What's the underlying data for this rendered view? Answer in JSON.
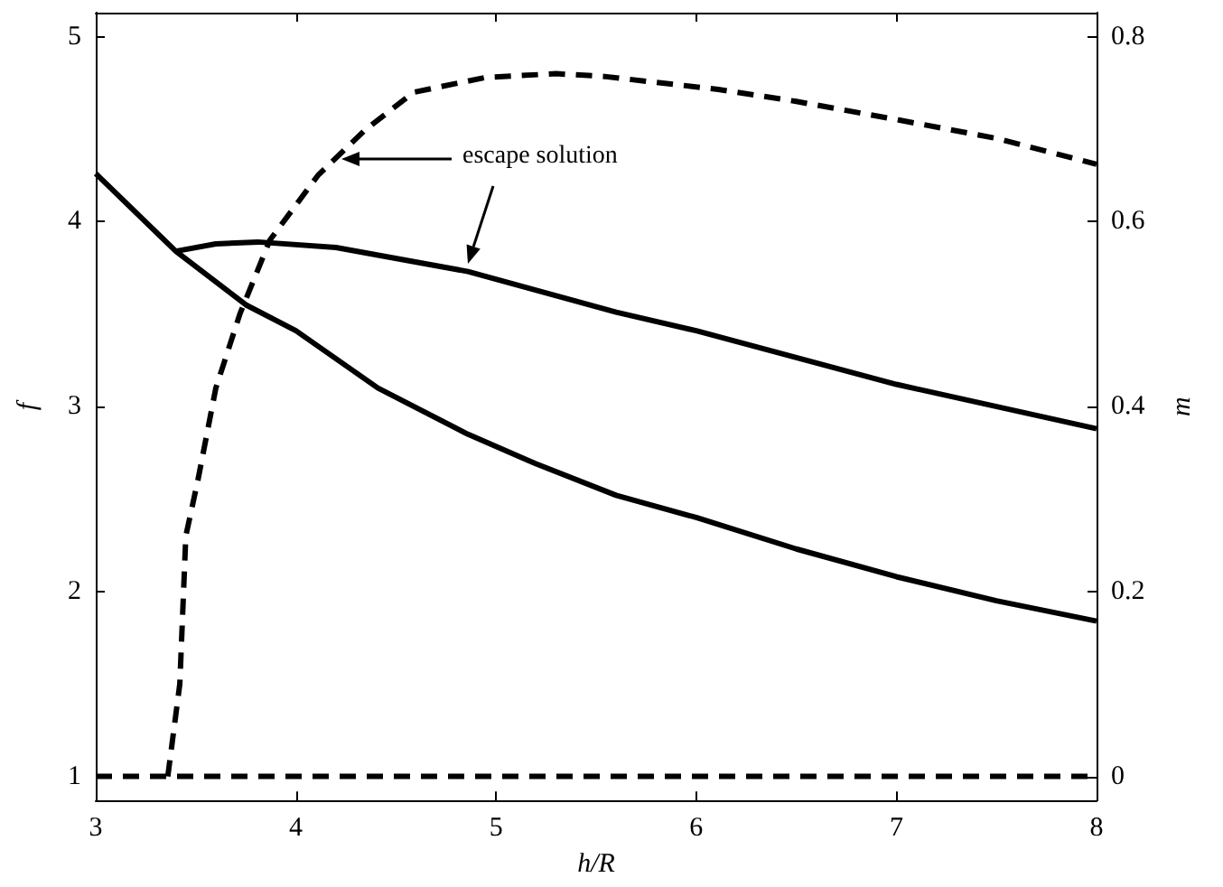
{
  "chart_data": {
    "type": "line",
    "xlabel": "h/R",
    "ylabel": "f",
    "y2label": "m",
    "xlim": [
      3,
      8
    ],
    "xticks": [
      3,
      4,
      5,
      6,
      7,
      8
    ],
    "ylim": [
      0.87,
      5.13
    ],
    "yticks": [
      1,
      2,
      3,
      4,
      5
    ],
    "y2lim": [
      -0.026,
      0.826
    ],
    "y2ticks": [
      0,
      0.2,
      0.4,
      0.6,
      0.8
    ],
    "grid": false,
    "marker": "none",
    "series": [
      {
        "color": "#000000",
        "line_style": "solid",
        "x": [
          3,
          3.4,
          3.75,
          4.0,
          4.41,
          4.86,
          5.2,
          5.6,
          6,
          6.5,
          7,
          7.5,
          8
        ],
        "values": [
          4.26,
          3.84,
          3.55,
          3.41,
          3.1,
          2.85,
          2.69,
          2.52,
          2.4,
          2.23,
          2.08,
          1.95,
          1.84
        ]
      },
      {
        "color": "#000000",
        "line_style": "solid",
        "x": [
          3.4,
          3.6,
          3.81,
          4.2,
          4.86,
          5.6,
          6,
          7,
          8
        ],
        "values": [
          3.84,
          3.88,
          3.89,
          3.86,
          3.73,
          3.51,
          3.41,
          3.12,
          2.88
        ]
      },
      {
        "color": "#000000",
        "line_style": "dashed",
        "axis": "y2",
        "x": [
          3,
          8
        ],
        "values": [
          0,
          0
        ]
      },
      {
        "color": "#000000",
        "line_style": "dashed",
        "axis": "y2",
        "x": [
          3.36,
          3.42,
          3.45,
          3.51,
          3.6,
          3.72,
          3.87,
          4.11,
          4.35,
          4.59,
          4.95,
          5.3,
          5.54,
          6.11,
          6.5,
          7.01,
          7.5,
          8
        ],
        "values": [
          0,
          0.1,
          0.26,
          0.32,
          0.42,
          0.5,
          0.58,
          0.65,
          0.7,
          0.74,
          0.756,
          0.76,
          0.757,
          0.743,
          0.73,
          0.71,
          0.69,
          0.662
        ]
      }
    ],
    "annotations": [
      "escape solution"
    ]
  }
}
